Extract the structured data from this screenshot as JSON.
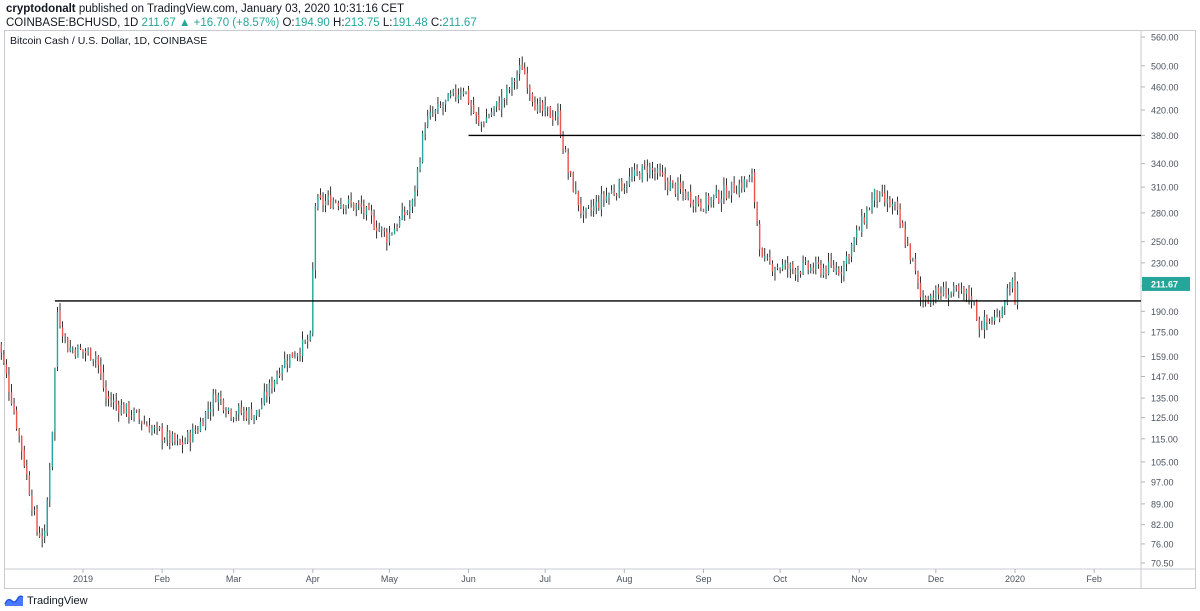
{
  "header": {
    "author": "cryptodonalt",
    "published": "published on TradingView.com, January 03, 2020 10:31:16 CET",
    "symbol_line": "COINBASE:BCHUSD, 1D",
    "last": "211.67",
    "change": "+16.70 (+8.57%)",
    "o_label": "O:",
    "o_val": "194.90",
    "h_label": "H:",
    "h_val": "213.75",
    "l_label": "L:",
    "l_val": "191.48",
    "c_label": "C:",
    "c_val": "211.67"
  },
  "chart_title": "Bitcoin Cash / U.S. Dollar, 1D, COINBASE",
  "footer": {
    "brand": "TradingView",
    "logo_icon": "tradingview-logo-icon"
  },
  "colors": {
    "up": "#26a69a",
    "down": "#ef5350",
    "candle_up_body": "#ffffff",
    "candle_outline": "#000000",
    "price_label_bg": "#26a69a"
  },
  "chart_data": {
    "type": "candlestick",
    "title": "Bitcoin Cash / U.S. Dollar, 1D, COINBASE",
    "y_scale": "log",
    "y_ticks": [
      "560.00",
      "500.00",
      "460.00",
      "420.00",
      "380.00",
      "340.00",
      "310.00",
      "280.00",
      "250.00",
      "230.00",
      "210.00",
      "190.00",
      "175.00",
      "159.00",
      "147.00",
      "135.00",
      "125.00",
      "115.00",
      "105.00",
      "97.00",
      "89.00",
      "82.00",
      "76.00",
      "70.50"
    ],
    "x_ticks": [
      "2019",
      "Feb",
      "Mar",
      "Apr",
      "May",
      "Jun",
      "Jul",
      "Aug",
      "Sep",
      "Oct",
      "Nov",
      "Dec",
      "2020",
      "Feb"
    ],
    "current_price": "211.67",
    "horizontal_lines": [
      {
        "price": 380,
        "from": "2019-06-01",
        "to": "end"
      },
      {
        "price": 198,
        "from": "2018-12-21",
        "to": "end"
      }
    ],
    "close_path": [
      [
        "2018-11-28",
        175
      ],
      [
        "2018-12-04",
        135
      ],
      [
        "2018-12-09",
        105
      ],
      [
        "2018-12-14",
        80
      ],
      [
        "2018-12-17",
        78
      ],
      [
        "2018-12-20",
        120
      ],
      [
        "2018-12-22",
        190
      ],
      [
        "2018-12-26",
        165
      ],
      [
        "2018-12-30",
        163
      ],
      [
        "2019-01-06",
        160
      ],
      [
        "2019-01-10",
        135
      ],
      [
        "2019-01-20",
        127
      ],
      [
        "2019-01-30",
        118
      ],
      [
        "2019-02-08",
        112
      ],
      [
        "2019-02-15",
        120
      ],
      [
        "2019-02-22",
        137
      ],
      [
        "2019-02-28",
        128
      ],
      [
        "2019-03-10",
        127
      ],
      [
        "2019-03-20",
        155
      ],
      [
        "2019-03-31",
        170
      ],
      [
        "2019-04-02",
        290
      ],
      [
        "2019-04-10",
        295
      ],
      [
        "2019-04-20",
        285
      ],
      [
        "2019-04-30",
        255
      ],
      [
        "2019-05-10",
        290
      ],
      [
        "2019-05-15",
        400
      ],
      [
        "2019-05-30",
        460
      ],
      [
        "2019-06-05",
        395
      ],
      [
        "2019-06-15",
        440
      ],
      [
        "2019-06-22",
        500
      ],
      [
        "2019-06-28",
        420
      ],
      [
        "2019-07-06",
        410
      ],
      [
        "2019-07-10",
        330
      ],
      [
        "2019-07-16",
        275
      ],
      [
        "2019-07-25",
        300
      ],
      [
        "2019-08-10",
        335
      ],
      [
        "2019-08-20",
        310
      ],
      [
        "2019-09-01",
        290
      ],
      [
        "2019-09-10",
        305
      ],
      [
        "2019-09-20",
        320
      ],
      [
        "2019-09-24",
        230
      ],
      [
        "2019-10-05",
        225
      ],
      [
        "2019-10-25",
        225
      ],
      [
        "2019-11-07",
        300
      ],
      [
        "2019-11-15",
        285
      ],
      [
        "2019-11-22",
        230
      ],
      [
        "2019-11-25",
        200
      ],
      [
        "2019-12-05",
        205
      ],
      [
        "2019-12-15",
        202
      ],
      [
        "2019-12-18",
        180
      ],
      [
        "2019-12-25",
        185
      ],
      [
        "2019-12-30",
        212
      ],
      [
        "2020-01-02",
        211.67
      ]
    ]
  }
}
